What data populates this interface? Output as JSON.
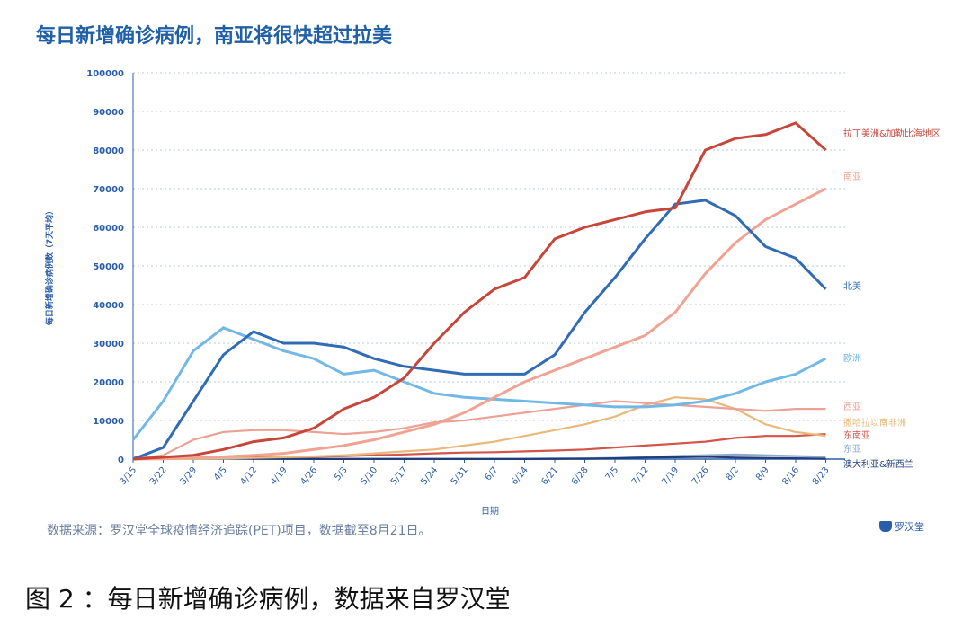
{
  "title": "每日新增确诊病例，南亚将很快超过拉美",
  "source": "数据来源：罗汉堂全球疫情经济追踪(PET)项目，数据截至8月21日。",
  "caption": "图 2 ：每日新增确诊病例，数据来自罗汉堂",
  "logo_text": "罗汉堂",
  "chart_data": {
    "type": "line",
    "title": "每日新增确诊病例，南亚将很快超过拉美",
    "xlabel": "日期",
    "ylabel": "每日新增确诊病例数（7天平均）",
    "ylim": [
      0,
      100000
    ],
    "yticks": [
      "0",
      "10000",
      "20000",
      "30000",
      "40000",
      "50000",
      "60000",
      "70000",
      "80000",
      "90000",
      "100000"
    ],
    "grid": "horizontal dotted",
    "legend": "line-end labels on right",
    "x": [
      "3/15",
      "3/22",
      "3/29",
      "4/5",
      "4/12",
      "4/19",
      "4/26",
      "5/3",
      "5/10",
      "5/17",
      "5/24",
      "5/31",
      "6/7",
      "6/14",
      "6/21",
      "6/28",
      "7/5",
      "7/12",
      "7/19",
      "7/26",
      "8/2",
      "8/9",
      "8/16",
      "8/23"
    ],
    "series": [
      {
        "name": "拉丁美洲&加勒比海地区",
        "color": "#c8453a",
        "values": [
          0,
          500,
          1000,
          2500,
          4500,
          5500,
          8000,
          13000,
          16000,
          21000,
          30000,
          38000,
          44000,
          47000,
          57000,
          60000,
          62000,
          64000,
          65000,
          80000,
          83000,
          84000,
          87000,
          80000
        ]
      },
      {
        "name": "南亚",
        "color": "#f0a392",
        "values": [
          0,
          200,
          400,
          600,
          1000,
          1500,
          2500,
          3500,
          5000,
          7000,
          9000,
          12000,
          16000,
          20000,
          23000,
          26000,
          29000,
          32000,
          38000,
          48000,
          56000,
          62000,
          66000,
          70000
        ]
      },
      {
        "name": "北美",
        "color": "#2f6cb5",
        "values": [
          0,
          3000,
          15000,
          27000,
          33000,
          30000,
          30000,
          29000,
          26000,
          24000,
          23000,
          22000,
          22000,
          22000,
          27000,
          38000,
          47000,
          57000,
          66000,
          67000,
          63000,
          55000,
          52000,
          44000
        ]
      },
      {
        "name": "欧洲",
        "color": "#72b8e6",
        "values": [
          5000,
          15000,
          28000,
          34000,
          31000,
          28000,
          26000,
          22000,
          23000,
          20000,
          17000,
          16000,
          15500,
          15000,
          14500,
          14000,
          13500,
          13500,
          14000,
          15000,
          17000,
          20000,
          22000,
          26000
        ]
      },
      {
        "name": "西亚",
        "color": "#eda195",
        "values": [
          0,
          1000,
          5000,
          7000,
          7500,
          7500,
          7000,
          6500,
          7000,
          8000,
          9500,
          10000,
          11000,
          12000,
          13000,
          14000,
          15000,
          14500,
          14000,
          13500,
          13000,
          12500,
          13000,
          13000
        ]
      },
      {
        "name": "撒哈拉以南非洲",
        "color": "#e9b87a",
        "values": [
          0,
          0,
          100,
          200,
          300,
          500,
          700,
          1000,
          1500,
          2000,
          2500,
          3500,
          4500,
          6000,
          7500,
          9000,
          11000,
          14000,
          16000,
          15500,
          13000,
          9000,
          7000,
          6000
        ]
      },
      {
        "name": "东南亚",
        "color": "#d4544a",
        "values": [
          0,
          0,
          200,
          400,
          500,
          500,
          600,
          800,
          1000,
          1200,
          1500,
          1700,
          1800,
          2000,
          2200,
          2500,
          3000,
          3500,
          4000,
          4500,
          5500,
          6000,
          6000,
          6500
        ]
      },
      {
        "name": "东亚",
        "color": "#8fa8cc",
        "values": [
          500,
          500,
          300,
          200,
          200,
          100,
          100,
          100,
          100,
          100,
          100,
          100,
          100,
          100,
          200,
          200,
          300,
          500,
          800,
          1000,
          1200,
          1000,
          800,
          600
        ]
      },
      {
        "name": "澳大利亚&新西兰",
        "color": "#1f3d7a",
        "values": [
          0,
          100,
          400,
          300,
          100,
          50,
          20,
          20,
          20,
          20,
          20,
          20,
          20,
          20,
          50,
          100,
          200,
          400,
          500,
          600,
          400,
          300,
          200,
          100
        ]
      }
    ]
  }
}
